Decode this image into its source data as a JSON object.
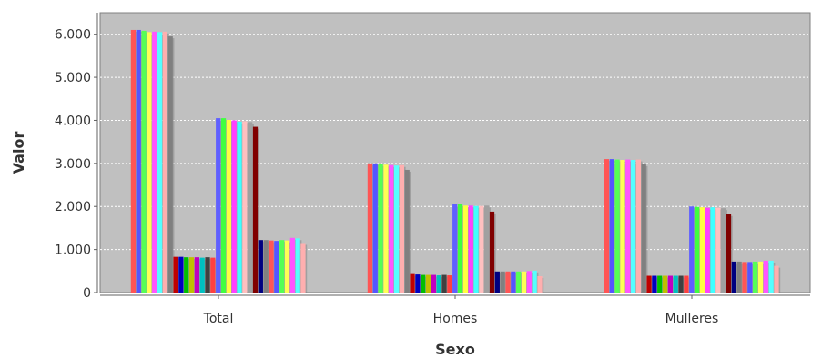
{
  "chart_data": {
    "type": "bar",
    "title": "",
    "xlabel": "Sexo",
    "ylabel": "Valor",
    "categories": [
      "Total",
      "Homes",
      "Mulleres"
    ],
    "ylim": [
      0,
      6500
    ],
    "yticks": [
      0,
      1000,
      2000,
      3000,
      4000,
      5000,
      6000
    ],
    "ytick_labels": [
      "0",
      "1.000",
      "2.000",
      "3.000",
      "4.000",
      "5.000",
      "6.000"
    ],
    "grid": true,
    "legend": "none",
    "background_color": "#c0c0c0",
    "series_colors": [
      "#ff5555",
      "#5555ff",
      "#55ff55",
      "#ffff55",
      "#ff55ff",
      "#55ffff",
      "#ffafaf",
      "#808080",
      "#c00000",
      "#0000c0",
      "#00c000",
      "#c0c000",
      "#c000c0",
      "#00c0c0",
      "#404040",
      "#ff4040",
      "#6060ff",
      "#40ff40",
      "#ffff40",
      "#ff40ff",
      "#40ffff",
      "#ffc0c0",
      "#a0a0a0",
      "#800000",
      "#000080",
      "#808080"
    ],
    "series": [
      {
        "values": [
          6100,
          3000,
          3100
        ]
      },
      {
        "values": [
          6100,
          3000,
          3100
        ]
      },
      {
        "values": [
          6080,
          2980,
          3090
        ]
      },
      {
        "values": [
          6050,
          2970,
          3080
        ]
      },
      {
        "values": [
          6060,
          2960,
          3090
        ]
      },
      {
        "values": [
          6050,
          2950,
          3080
        ]
      },
      {
        "values": [
          6060,
          2960,
          3090
        ]
      },
      {
        "values": [
          5950,
          2850,
          2980
        ]
      },
      {
        "values": [
          830,
          430,
          390
        ]
      },
      {
        "values": [
          830,
          420,
          390
        ]
      },
      {
        "values": [
          820,
          410,
          390
        ]
      },
      {
        "values": [
          820,
          410,
          390
        ]
      },
      {
        "values": [
          820,
          410,
          390
        ]
      },
      {
        "values": [
          810,
          400,
          390
        ]
      },
      {
        "values": [
          820,
          410,
          390
        ]
      },
      {
        "values": [
          810,
          400,
          390
        ]
      },
      {
        "values": [
          4050,
          2050,
          2000
        ]
      },
      {
        "values": [
          4050,
          2050,
          1990
        ]
      },
      {
        "values": [
          4010,
          2020,
          1980
        ]
      },
      {
        "values": [
          4000,
          2020,
          1970
        ]
      },
      {
        "values": [
          3970,
          2010,
          1980
        ]
      },
      {
        "values": [
          3980,
          2010,
          1970
        ]
      },
      {
        "values": [
          3960,
          2020,
          1960
        ]
      },
      {
        "values": [
          3850,
          1880,
          1820
        ]
      },
      {
        "values": [
          1220,
          490,
          720
        ]
      },
      {
        "values": [
          1220,
          490,
          720
        ]
      },
      {
        "values": [
          1210,
          490,
          710
        ]
      },
      {
        "values": [
          1200,
          490,
          710
        ]
      },
      {
        "values": [
          1220,
          490,
          720
        ]
      },
      {
        "values": [
          1210,
          490,
          720
        ]
      },
      {
        "values": [
          1270,
          500,
          740
        ]
      },
      {
        "values": [
          1260,
          510,
          740
        ]
      },
      {
        "values": [
          1150,
          380,
          620
        ]
      }
    ]
  }
}
